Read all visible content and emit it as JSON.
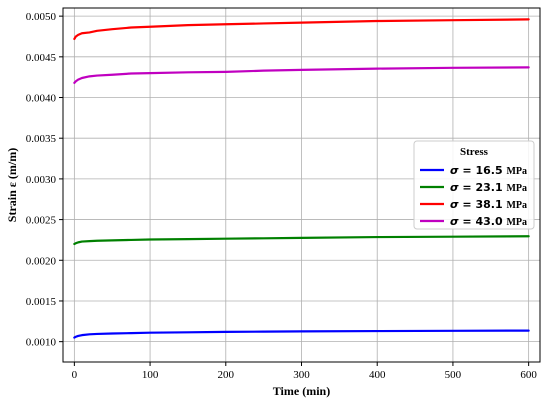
{
  "chart_data": {
    "type": "line",
    "xlabel": "Time (min)",
    "ylabel": "Strain ε (m/m)",
    "xlim": [
      -15,
      615
    ],
    "ylim": [
      0.00075,
      0.0051
    ],
    "xticks": [
      0,
      100,
      200,
      300,
      400,
      500,
      600
    ],
    "yticks": [
      0.001,
      0.0015,
      0.002,
      0.0025,
      0.003,
      0.0035,
      0.004,
      0.0045,
      0.005
    ],
    "grid": true,
    "legend": {
      "title": "Stress",
      "placement": "center-right"
    },
    "series": [
      {
        "name": "σ = 16.5 MPa",
        "sigma_symbol": "σ",
        "stress_value": "= 16.5",
        "unit": "MPa",
        "color": "#0000ff",
        "x": [
          0,
          2,
          5,
          10,
          20,
          30,
          50,
          75,
          100,
          150,
          200,
          250,
          300,
          400,
          500,
          600
        ],
        "y": [
          0.00105,
          0.00106,
          0.00107,
          0.00108,
          0.00109,
          0.001095,
          0.0011,
          0.001105,
          0.00111,
          0.001115,
          0.00112,
          0.001123,
          0.001126,
          0.00113,
          0.001133,
          0.001136
        ]
      },
      {
        "name": "σ = 23.1 MPa",
        "sigma_symbol": "σ",
        "stress_value": "= 23.1",
        "unit": "MPa",
        "color": "#008000",
        "x": [
          0,
          2,
          5,
          10,
          20,
          30,
          50,
          75,
          100,
          150,
          200,
          250,
          300,
          400,
          500,
          600
        ],
        "y": [
          0.0022,
          0.00221,
          0.00222,
          0.00223,
          0.002235,
          0.00224,
          0.002245,
          0.00225,
          0.002255,
          0.00226,
          0.002265,
          0.00227,
          0.002275,
          0.002285,
          0.00229,
          0.002295
        ]
      },
      {
        "name": "σ = 38.1 MPa",
        "sigma_symbol": "σ",
        "stress_value": "= 38.1",
        "unit": "MPa",
        "color": "#ff0000",
        "x": [
          0,
          2,
          5,
          10,
          20,
          30,
          50,
          75,
          100,
          150,
          200,
          250,
          300,
          400,
          500,
          600
        ],
        "y": [
          0.00472,
          0.00475,
          0.00477,
          0.00479,
          0.0048,
          0.00482,
          0.00484,
          0.00486,
          0.00487,
          0.00489,
          0.0049,
          0.00491,
          0.00492,
          0.00494,
          0.00495,
          0.00496
        ]
      },
      {
        "name": "σ = 43.0 MPa",
        "sigma_symbol": "σ",
        "stress_value": "= 43.0",
        "unit": "MPa",
        "color": "#c000c0",
        "x": [
          0,
          2,
          5,
          10,
          20,
          30,
          50,
          75,
          100,
          150,
          200,
          250,
          300,
          400,
          500,
          600
        ],
        "y": [
          0.00418,
          0.0042,
          0.00422,
          0.00424,
          0.00426,
          0.00427,
          0.00428,
          0.004295,
          0.0043,
          0.00431,
          0.004315,
          0.00433,
          0.00434,
          0.004355,
          0.004365,
          0.00437
        ]
      }
    ]
  }
}
